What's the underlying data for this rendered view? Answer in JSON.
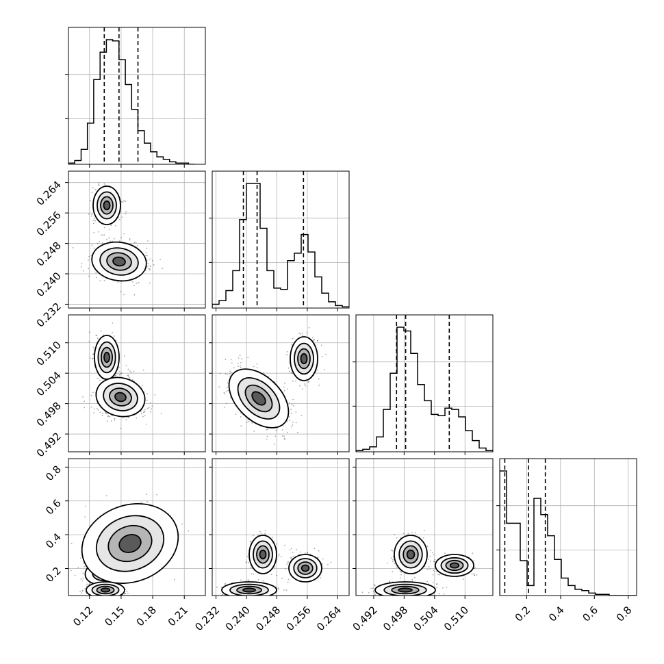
{
  "chart_data": {
    "type": "corner",
    "grid": true,
    "colors": {
      "line": "#000000",
      "grid": "#b0b0b0",
      "points": "#000000",
      "fill": "#ffffff"
    },
    "parameters": [
      {
        "ticks": [
          "0.12",
          "0.15",
          "0.18",
          "0.21"
        ],
        "range": [
          0.1,
          0.23
        ],
        "hist": [
          0.01,
          0.03,
          0.12,
          0.33,
          0.68,
          0.9,
          1.0,
          0.99,
          0.84,
          0.64,
          0.44,
          0.27,
          0.17,
          0.1,
          0.06,
          0.04,
          0.02,
          0.01,
          0.01,
          0.0
        ],
        "hist_range": [
          0.1,
          0.22
        ],
        "quantiles": [
          0.134,
          0.148,
          0.166
        ]
      },
      {
        "ticks": [
          "0.232",
          "0.240",
          "0.248",
          "0.256",
          "0.264"
        ],
        "range": [
          0.231,
          0.267
        ],
        "hist": [
          0.03,
          0.06,
          0.14,
          0.3,
          0.71,
          1.0,
          1.0,
          0.64,
          0.3,
          0.16,
          0.15,
          0.38,
          0.44,
          0.59,
          0.45,
          0.25,
          0.12,
          0.05,
          0.02,
          0.01
        ],
        "hist_range": [
          0.231,
          0.267
        ],
        "quantiles": [
          0.2392,
          0.2428,
          0.255
        ]
      },
      {
        "ticks": [
          "0.492",
          "0.498",
          "0.504",
          "0.510"
        ],
        "range": [
          0.4885,
          0.5155
        ],
        "hist": [
          0.01,
          0.02,
          0.04,
          0.12,
          0.34,
          0.63,
          1.0,
          0.97,
          0.79,
          0.54,
          0.41,
          0.3,
          0.29,
          0.35,
          0.34,
          0.28,
          0.17,
          0.09,
          0.03,
          0.01
        ],
        "hist_range": [
          0.4885,
          0.5155
        ],
        "quantiles": [
          0.4965,
          0.4983,
          0.5069
        ]
      },
      {
        "ticks": [
          "0.2",
          "0.4",
          "0.6",
          "0.8"
        ],
        "range": [
          0.04,
          0.85
        ],
        "hist": [
          1.0,
          0.58,
          0.58,
          0.28,
          0.08,
          0.78,
          0.65,
          0.48,
          0.29,
          0.14,
          0.08,
          0.05,
          0.04,
          0.02,
          0.01,
          0.01,
          0.0,
          0.0,
          0.0,
          0.0
        ],
        "hist_range": [
          0.04,
          0.85
        ],
        "quantiles": [
          0.07,
          0.21,
          0.31
        ]
      }
    ]
  }
}
